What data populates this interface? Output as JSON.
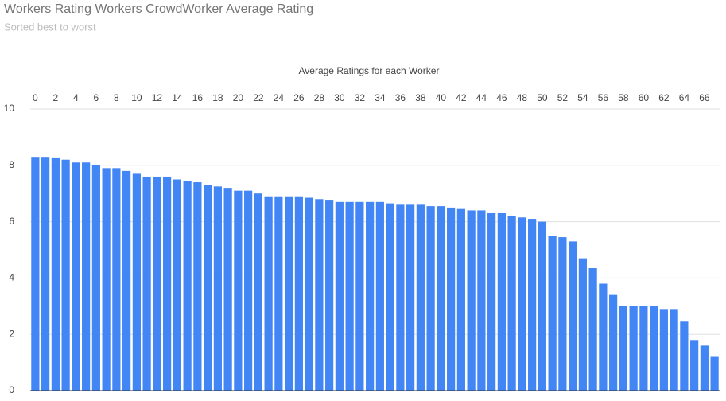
{
  "chart_data": {
    "type": "bar",
    "title": "Workers Rating Workers CrowdWorker Average Rating",
    "subtitle": "Sorted best to worst",
    "x_label": "Average Ratings for each Worker",
    "categories": [
      "0",
      null,
      "2",
      null,
      "4",
      null,
      "6",
      null,
      "8",
      null,
      "10",
      null,
      "12",
      null,
      "14",
      null,
      "16",
      null,
      "18",
      null,
      "20",
      null,
      "22",
      null,
      "24",
      null,
      "26",
      null,
      "28",
      null,
      "30",
      null,
      "32",
      null,
      "34",
      null,
      "36",
      null,
      "38",
      null,
      "40",
      null,
      "42",
      null,
      "44",
      null,
      "46",
      null,
      "48",
      null,
      "50",
      null,
      "52",
      null,
      "54",
      null,
      "56",
      null,
      "58",
      null,
      "60",
      null,
      "62",
      null,
      "64",
      null,
      "66",
      null
    ],
    "values": [
      8.3,
      8.3,
      8.28,
      8.2,
      8.1,
      8.1,
      8.0,
      7.9,
      7.9,
      7.8,
      7.7,
      7.6,
      7.6,
      7.6,
      7.5,
      7.45,
      7.4,
      7.3,
      7.25,
      7.2,
      7.1,
      7.1,
      7.0,
      6.9,
      6.9,
      6.9,
      6.9,
      6.85,
      6.8,
      6.75,
      6.7,
      6.7,
      6.7,
      6.7,
      6.7,
      6.65,
      6.6,
      6.6,
      6.6,
      6.55,
      6.55,
      6.5,
      6.45,
      6.4,
      6.4,
      6.3,
      6.3,
      6.2,
      6.15,
      6.1,
      6.0,
      5.5,
      5.45,
      5.3,
      4.7,
      4.35,
      3.8,
      3.4,
      3.0,
      3.0,
      3.0,
      3.0,
      2.9,
      2.9,
      2.45,
      1.8,
      1.6,
      1.2
    ],
    "color": "#4285f4",
    "ylim": [
      0,
      10
    ],
    "yticks": [
      0,
      2,
      4,
      6,
      8,
      10
    ],
    "grid": true
  }
}
